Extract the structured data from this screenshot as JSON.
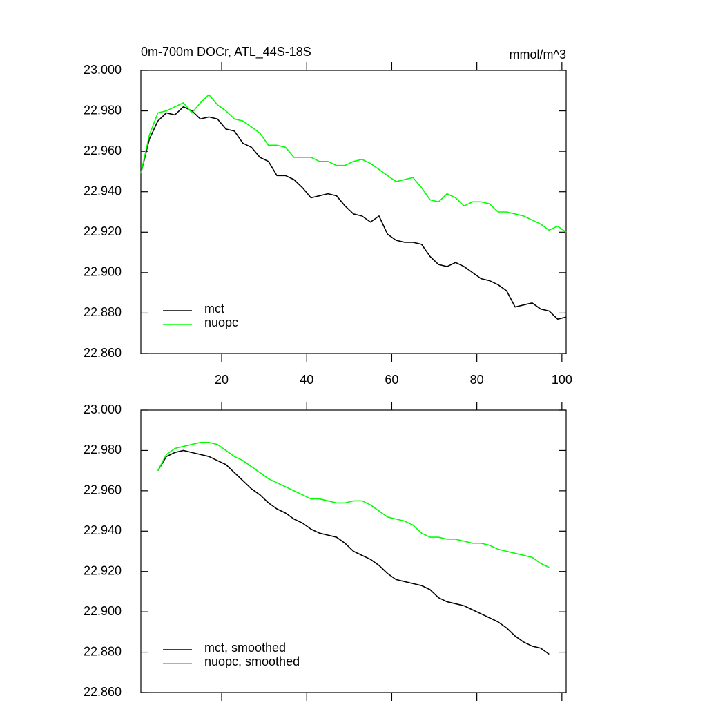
{
  "chart_data": [
    {
      "type": "line",
      "title": "0m-700m DOCr, ATL_44S-18S",
      "right_title": "mmol/m^3",
      "x": [
        1,
        3,
        5,
        7,
        9,
        11,
        13,
        15,
        17,
        19,
        21,
        23,
        25,
        27,
        29,
        31,
        33,
        35,
        37,
        39,
        41,
        43,
        45,
        47,
        49,
        51,
        53,
        55,
        57,
        59,
        61,
        63,
        65,
        67,
        69,
        71,
        73,
        75,
        77,
        79,
        81,
        83,
        85,
        87,
        89,
        91,
        93,
        95,
        97,
        99,
        101
      ],
      "series": [
        {
          "name": "mct",
          "color": "#000000",
          "values": [
            22.949,
            22.966,
            22.975,
            22.979,
            22.978,
            22.982,
            22.98,
            22.976,
            22.977,
            22.976,
            22.971,
            22.97,
            22.964,
            22.962,
            22.957,
            22.955,
            22.948,
            22.948,
            22.946,
            22.942,
            22.937,
            22.938,
            22.939,
            22.938,
            22.933,
            22.929,
            22.928,
            22.925,
            22.928,
            22.919,
            22.916,
            22.915,
            22.915,
            22.914,
            22.908,
            22.904,
            22.903,
            22.905,
            22.903,
            22.9,
            22.897,
            22.896,
            22.894,
            22.891,
            22.883,
            22.884,
            22.885,
            22.882,
            22.881,
            22.877,
            22.878
          ]
        },
        {
          "name": "nuopc",
          "color": "#00ff00",
          "values": [
            22.949,
            22.968,
            22.979,
            22.98,
            22.982,
            22.984,
            22.979,
            22.984,
            22.988,
            22.983,
            22.98,
            22.976,
            22.975,
            22.972,
            22.969,
            22.963,
            22.963,
            22.962,
            22.957,
            22.957,
            22.957,
            22.955,
            22.955,
            22.953,
            22.953,
            22.955,
            22.956,
            22.954,
            22.951,
            22.948,
            22.945,
            22.946,
            22.947,
            22.942,
            22.936,
            22.935,
            22.939,
            22.937,
            22.933,
            22.935,
            22.935,
            22.934,
            22.93,
            22.93,
            22.929,
            22.928,
            22.926,
            22.924,
            22.921,
            22.923,
            22.92
          ]
        }
      ],
      "xlim": [
        1,
        101
      ],
      "xticks": [
        20,
        40,
        60,
        80,
        100
      ],
      "x_tick_labels": true,
      "ylim": [
        22.86,
        23.0
      ],
      "yticks": [
        {
          "value": 22.86,
          "label": "22.860"
        },
        {
          "value": 22.88,
          "label": "22.880"
        },
        {
          "value": 22.9,
          "label": "22.900"
        },
        {
          "value": 22.92,
          "label": "22.920"
        },
        {
          "value": 22.94,
          "label": "22.940"
        },
        {
          "value": 22.96,
          "label": "22.960"
        },
        {
          "value": 22.98,
          "label": "22.980"
        },
        {
          "value": 23.0,
          "label": "23.000"
        }
      ],
      "legend": "lower left",
      "grid": false
    },
    {
      "type": "line",
      "x": [
        5,
        7,
        9,
        11,
        13,
        15,
        17,
        19,
        21,
        23,
        25,
        27,
        29,
        31,
        33,
        35,
        37,
        39,
        41,
        43,
        45,
        47,
        49,
        51,
        53,
        55,
        57,
        59,
        61,
        63,
        65,
        67,
        69,
        71,
        73,
        75,
        77,
        79,
        81,
        83,
        85,
        87,
        89,
        91,
        93,
        95,
        97
      ],
      "series": [
        {
          "name": "mct, smoothed",
          "color": "#000000",
          "values": [
            22.97,
            22.977,
            22.979,
            22.98,
            22.979,
            22.978,
            22.977,
            22.975,
            22.973,
            22.969,
            22.965,
            22.961,
            22.958,
            22.954,
            22.951,
            22.949,
            22.946,
            22.944,
            22.941,
            22.939,
            22.938,
            22.937,
            22.934,
            22.93,
            22.928,
            22.926,
            22.923,
            22.919,
            22.916,
            22.915,
            22.914,
            22.913,
            22.911,
            22.907,
            22.905,
            22.904,
            22.903,
            22.901,
            22.899,
            22.897,
            22.895,
            22.892,
            22.888,
            22.885,
            22.883,
            22.882,
            22.879
          ]
        },
        {
          "name": "nuopc, smoothed",
          "color": "#00ff00",
          "values": [
            22.97,
            22.978,
            22.981,
            22.982,
            22.983,
            22.984,
            22.984,
            22.983,
            22.98,
            22.977,
            22.975,
            22.972,
            22.969,
            22.966,
            22.964,
            22.962,
            22.96,
            22.958,
            22.956,
            22.956,
            22.955,
            22.954,
            22.954,
            22.955,
            22.955,
            22.953,
            22.95,
            22.947,
            22.946,
            22.945,
            22.943,
            22.939,
            22.937,
            22.937,
            22.936,
            22.936,
            22.935,
            22.934,
            22.934,
            22.933,
            22.931,
            22.93,
            22.929,
            22.928,
            22.927,
            22.924,
            22.922
          ]
        }
      ],
      "xlim": [
        1,
        101
      ],
      "xticks": [
        20,
        40,
        60,
        80,
        100
      ],
      "x_tick_labels": false,
      "ylim": [
        22.86,
        23.0
      ],
      "yticks": [
        {
          "value": 22.86,
          "label": "22.860"
        },
        {
          "value": 22.88,
          "label": "22.880"
        },
        {
          "value": 22.9,
          "label": "22.900"
        },
        {
          "value": 22.92,
          "label": "22.920"
        },
        {
          "value": 22.94,
          "label": "22.940"
        },
        {
          "value": 22.96,
          "label": "22.960"
        },
        {
          "value": 22.98,
          "label": "22.980"
        },
        {
          "value": 23.0,
          "label": "23.000"
        }
      ],
      "legend": "lower left",
      "grid": false
    }
  ]
}
